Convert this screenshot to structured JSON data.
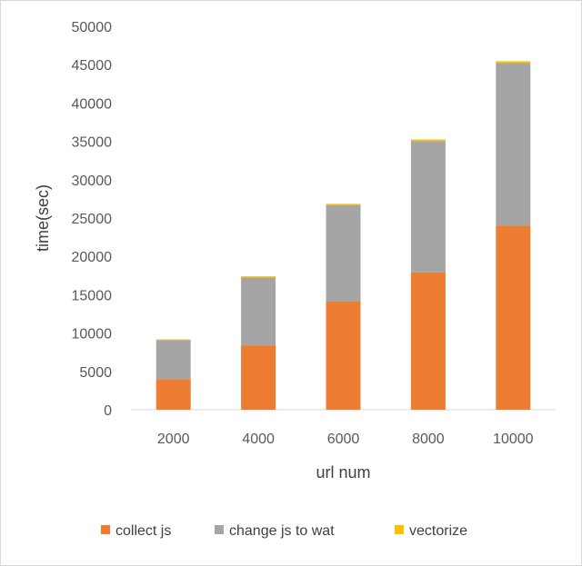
{
  "chart_data": {
    "type": "bar",
    "stacked": true,
    "title": "",
    "xlabel": "url num",
    "ylabel": "time(sec)",
    "categories": [
      "2000",
      "4000",
      "6000",
      "8000",
      "10000"
    ],
    "series": [
      {
        "name": "collect js",
        "color": "#ED7D31",
        "values": [
          4000,
          8400,
          14100,
          17900,
          24000
        ]
      },
      {
        "name": "change js to wat",
        "color": "#A5A5A5",
        "values": [
          5100,
          8850,
          12600,
          17150,
          21200
        ]
      },
      {
        "name": "vectorize",
        "color": "#FFC000",
        "values": [
          80,
          150,
          150,
          200,
          250
        ]
      }
    ],
    "ylim": [
      0,
      50000
    ],
    "yticks": [
      0,
      5000,
      10000,
      15000,
      20000,
      25000,
      30000,
      35000,
      40000,
      45000,
      50000
    ],
    "grid": false,
    "legend_position": "bottom"
  }
}
